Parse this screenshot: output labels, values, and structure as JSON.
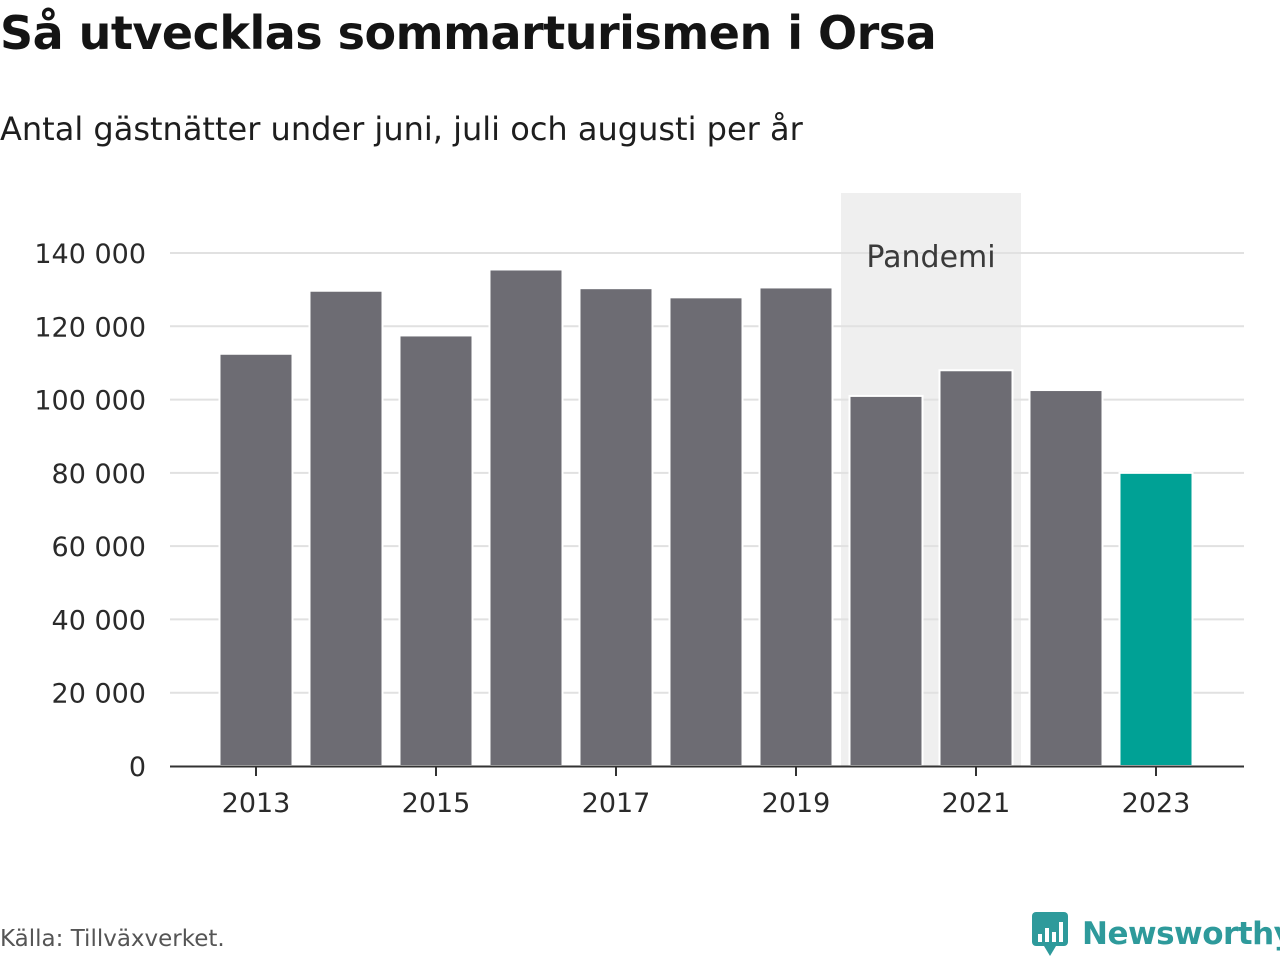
{
  "chart_data": {
    "type": "bar",
    "title": "Så utvecklas sommarturismen i Orsa",
    "subtitle": "Antal gästnätter under juni, juli och augusti per år",
    "x": [
      2013,
      2014,
      2015,
      2016,
      2017,
      2018,
      2019,
      2020,
      2021,
      2022,
      2023
    ],
    "values": [
      112500,
      129700,
      117500,
      135500,
      130400,
      127900,
      130600,
      101000,
      108000,
      102600,
      80000
    ],
    "highlight_index": 10,
    "colors": {
      "bar": "#6d6c73",
      "highlight": "#00a195",
      "band": "#efefef",
      "grid": "#e1e1e1",
      "axis": "#333333"
    },
    "ylim": [
      0,
      140000
    ],
    "yticks": [
      0,
      20000,
      40000,
      60000,
      80000,
      100000,
      120000,
      140000
    ],
    "ytick_labels": [
      "0",
      "20 000",
      "40 000",
      "60 000",
      "80 000",
      "100 000",
      "120 000",
      "140 000"
    ],
    "xticks": [
      2013,
      2015,
      2017,
      2019,
      2021,
      2023
    ],
    "xtick_labels": [
      "2013",
      "2015",
      "2017",
      "2019",
      "2021",
      "2023"
    ],
    "xlabel": "",
    "ylabel": "",
    "grid": true,
    "legend": "none",
    "annotations": [
      {
        "label": "Pandemi",
        "x_start": 2019.5,
        "x_end": 2021.5
      }
    ]
  },
  "source": "Källa: Tillväxverket.",
  "brand": {
    "name": "Newsworthy",
    "icon": "newsworthy-chart-bubble-icon",
    "color": "#2e9a9b"
  }
}
